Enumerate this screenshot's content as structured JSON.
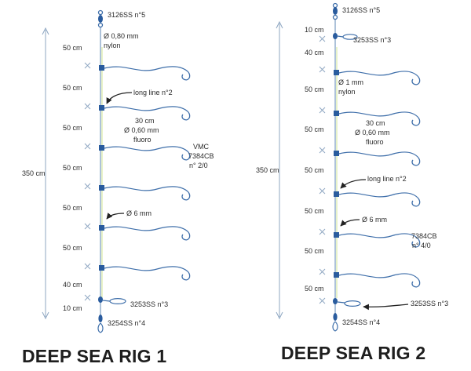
{
  "colors": {
    "main_line": "#8aa9c9",
    "hook": "#3f6faa",
    "bead": "#2a5c9e",
    "ruler": "#8fa7c2",
    "text": "#2b2b2b",
    "highlight": "#d8e9a4"
  },
  "rig1": {
    "title": "DEEP SEA RIG 1",
    "total_length": "350 cm",
    "segments": [
      "50 cm",
      "50 cm",
      "50 cm",
      "50 cm",
      "50 cm",
      "50 cm",
      "40 cm",
      "10 cm"
    ],
    "labels": {
      "top_swivel": "3126SS n°5",
      "main_line_diameter": "Ø 0,80 mm",
      "main_line_material": "nylon",
      "long_line": "long line n°2",
      "snood_length": "30 cm",
      "snood_diameter": "Ø 0,60 mm",
      "snood_material": "fluoro",
      "hook_brand": "VMC",
      "hook_model": "7384CB",
      "hook_size": "n° 2/0",
      "bead": "Ø 6 mm",
      "bottom_swivel": "3253SS n°3",
      "snap": "3254SS n°4"
    }
  },
  "rig2": {
    "title": "DEEP SEA RIG 2",
    "total_length": "350 cm",
    "segments": [
      "10 cm",
      "40 cm",
      "50 cm",
      "50 cm",
      "50 cm",
      "50 cm",
      "50 cm",
      "50 cm"
    ],
    "labels": {
      "top_swivel": "3126SS n°5",
      "upper_swivel": "3253SS n°3",
      "main_line_diameter": "Ø 1 mm",
      "main_line_material": "nylon",
      "snood_length": "30 cm",
      "snood_diameter": "Ø 0,60 mm",
      "snood_material": "fluoro",
      "long_line": "long line n°2",
      "bead": "Ø 6 mm",
      "hook_model": "7384CB",
      "hook_size": "n° 4/0",
      "bottom_swivel": "3253SS n°3",
      "snap": "3254SS n°4"
    }
  }
}
